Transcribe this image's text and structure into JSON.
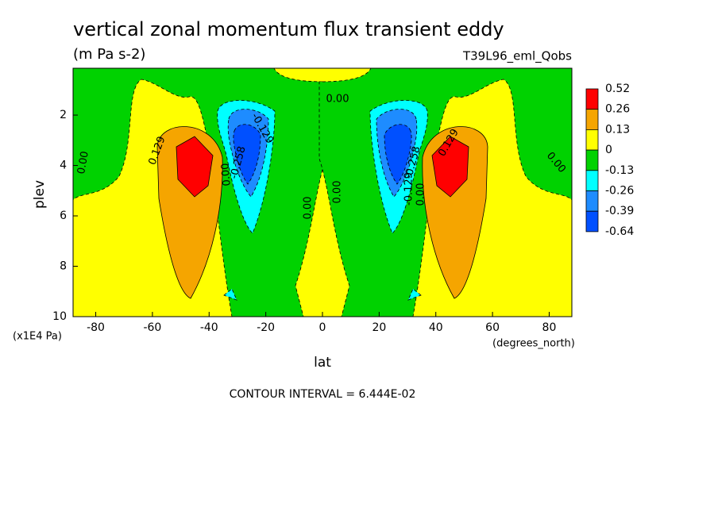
{
  "chart_data": {
    "type": "contour",
    "title": "vertical zonal momentum flux transient eddy",
    "subtitle": "(m Pa s-2)",
    "run_label": "T39L96_eml_Qobs",
    "x_label": "lat",
    "x_units": "(degrees_north)",
    "y_label": "plev",
    "y_units": "(x1E4 Pa)",
    "footnote": "CONTOUR INTERVAL = 6.444E-02",
    "xlim": [
      -88,
      88
    ],
    "xticks": [
      -80,
      -60,
      -40,
      -20,
      0,
      20,
      40,
      60,
      80
    ],
    "ylim": [
      10,
      0.14
    ],
    "yticks": [
      2,
      4,
      6,
      8,
      10
    ],
    "levels": [
      -0.64,
      -0.39,
      -0.26,
      -0.13,
      0,
      0.13,
      0.26,
      0.52
    ],
    "colors": [
      "#0050ff",
      "#1e8cff",
      "#00ffff",
      "#00d200",
      "#ffff00",
      "#f5a500",
      "#ff0000"
    ],
    "contour_labels": [
      {
        "value": 0,
        "label": "0.00"
      },
      {
        "value": 0.129,
        "label": "0.129"
      },
      {
        "value": 0,
        "label": "0.00"
      },
      {
        "value": -0.129,
        "label": "-0.129"
      },
      {
        "value": -0.258,
        "label": "-0.258"
      },
      {
        "value": 0,
        "label": "0.00"
      },
      {
        "value": 0,
        "label": "0.00"
      },
      {
        "value": 0,
        "label": "0.00"
      },
      {
        "value": -0.258,
        "label": "-0.258"
      },
      {
        "value": -0.129,
        "label": "-0.129"
      },
      {
        "value": 0,
        "label": "0.00"
      },
      {
        "value": 0.129,
        "label": "0.129"
      },
      {
        "value": 0,
        "label": "0.00"
      }
    ]
  }
}
